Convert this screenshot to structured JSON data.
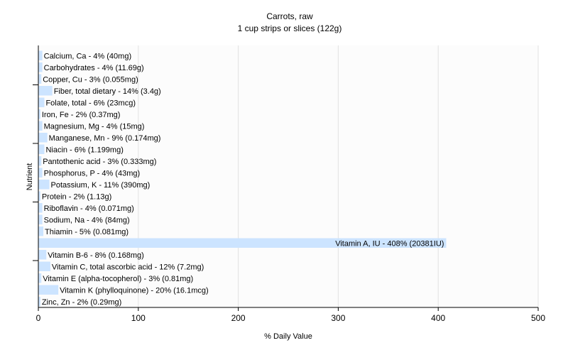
{
  "chart_data": {
    "type": "bar",
    "orientation": "horizontal",
    "title": "Carrots, raw",
    "subtitle": "1 cup strips or slices (122g)",
    "xlabel": "% Daily Value",
    "ylabel": "Nutrient",
    "xlim": [
      0,
      500
    ],
    "xticks": [
      0,
      100,
      200,
      300,
      400,
      500
    ],
    "grid": true,
    "bar_color": "#cce4ff",
    "categories": [
      "Calcium, Ca",
      "Carbohydrates",
      "Copper, Cu",
      "Fiber, total dietary",
      "Folate, total",
      "Iron, Fe",
      "Magnesium, Mg",
      "Manganese, Mn",
      "Niacin",
      "Pantothenic acid",
      "Phosphorus, P",
      "Potassium, K",
      "Protein",
      "Riboflavin",
      "Sodium, Na",
      "Thiamin",
      "Vitamin A, IU",
      "Vitamin B-6",
      "Vitamin C, total ascorbic acid",
      "Vitamin E (alpha-tocopherol)",
      "Vitamin K (phylloquinone)",
      "Zinc, Zn"
    ],
    "values": [
      4,
      4,
      3,
      14,
      6,
      2,
      4,
      9,
      6,
      3,
      4,
      11,
      2,
      4,
      4,
      5,
      408,
      8,
      12,
      3,
      20,
      2
    ],
    "labels": [
      "Calcium, Ca - 4% (40mg)",
      "Carbohydrates - 4% (11.69g)",
      "Copper, Cu - 3% (0.055mg)",
      "Fiber, total dietary - 14% (3.4g)",
      "Folate, total - 6% (23mcg)",
      "Iron, Fe - 2% (0.37mg)",
      "Magnesium, Mg - 4% (15mg)",
      "Manganese, Mn - 9% (0.174mg)",
      "Niacin - 6% (1.199mg)",
      "Pantothenic acid - 3% (0.333mg)",
      "Phosphorus, P - 4% (43mg)",
      "Potassium, K - 11% (390mg)",
      "Protein - 2% (1.13g)",
      "Riboflavin - 4% (0.071mg)",
      "Sodium, Na - 4% (84mg)",
      "Thiamin - 5% (0.081mg)",
      "Vitamin A, IU - 408% (20381IU)",
      "Vitamin B-6 - 8% (0.168mg)",
      "Vitamin C, total ascorbic acid - 12% (7.2mg)",
      "Vitamin E (alpha-tocopherol) - 3% (0.81mg)",
      "Vitamin K (phylloquinone) - 20% (16.1mcg)",
      "Zinc, Zn - 2% (0.29mg)"
    ]
  }
}
